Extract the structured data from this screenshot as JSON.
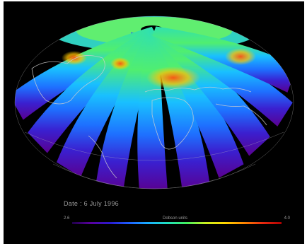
{
  "date_label": "Date : 6 July 1996",
  "colorbar": {
    "min_label": "2.6",
    "max_label": "4.0",
    "unit_label": "Dobson units"
  },
  "colors": {
    "background": "#000000",
    "coastline": "#cfcfcf",
    "scale": [
      "#20004a",
      "#5a00a0",
      "#2a1ad0",
      "#1e60ff",
      "#19b0ff",
      "#20e0c0",
      "#40f060",
      "#c8f020",
      "#ffd800",
      "#ff8800",
      "#e82a10",
      "#b00000"
    ]
  }
}
